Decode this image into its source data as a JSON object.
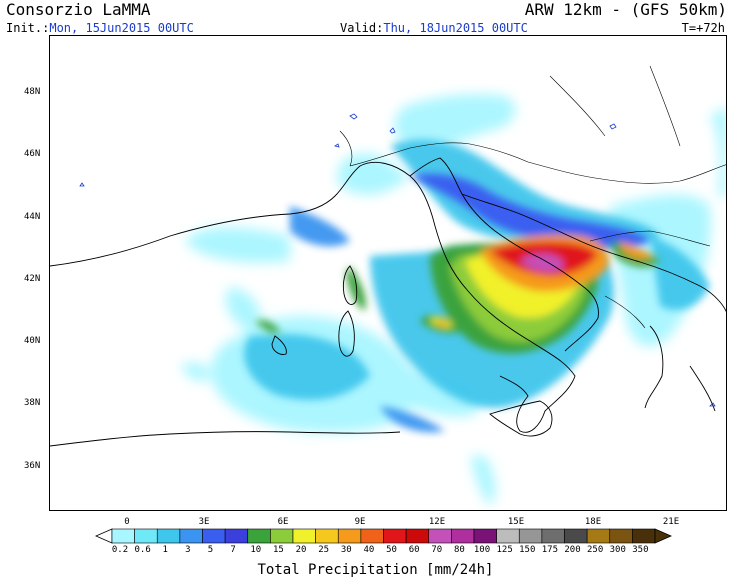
{
  "header": {
    "organization": "Consorzio LaMMA",
    "model": "ARW 12km - (GFS 50km)",
    "init_label": "Init.:",
    "init_value": "Mon, 15Jun2015 00UTC",
    "valid_label": "Valid:",
    "valid_value": "Thu, 18Jun2015 00UTC",
    "timestep": "T=+72h"
  },
  "map": {
    "lat_labels": [
      "48N",
      "46N",
      "44N",
      "42N",
      "40N",
      "38N",
      "36N"
    ],
    "lon_labels": [
      "0",
      "3E",
      "6E",
      "9E",
      "12E",
      "15E",
      "18E",
      "21E"
    ],
    "lat_range": [
      34.8,
      50.0
    ],
    "lon_range": [
      -4.7,
      23.5
    ]
  },
  "colorbar": {
    "title": "Total Precipitation [mm/24h]",
    "labels": [
      "0.2",
      "0.6",
      "1",
      "3",
      "5",
      "7",
      "10",
      "15",
      "20",
      "25",
      "30",
      "40",
      "50",
      "60",
      "70",
      "80",
      "100",
      "125",
      "150",
      "175",
      "200",
      "250",
      "300",
      "350"
    ],
    "colors": [
      "#a8f6ff",
      "#6fe8f7",
      "#3fc6ec",
      "#3a94f0",
      "#3a5ef0",
      "#3b3fdc",
      "#3aa33c",
      "#8ccc3a",
      "#f1f12b",
      "#f5c81e",
      "#f59a1a",
      "#f0611a",
      "#e0161a",
      "#cc0a0a",
      "#c450b9",
      "#b02f9e",
      "#7b1277",
      "#bcbcbc",
      "#969696",
      "#6e6e6e",
      "#4a4a4a",
      "#a57a14",
      "#7a5410",
      "#4a300a"
    ]
  }
}
